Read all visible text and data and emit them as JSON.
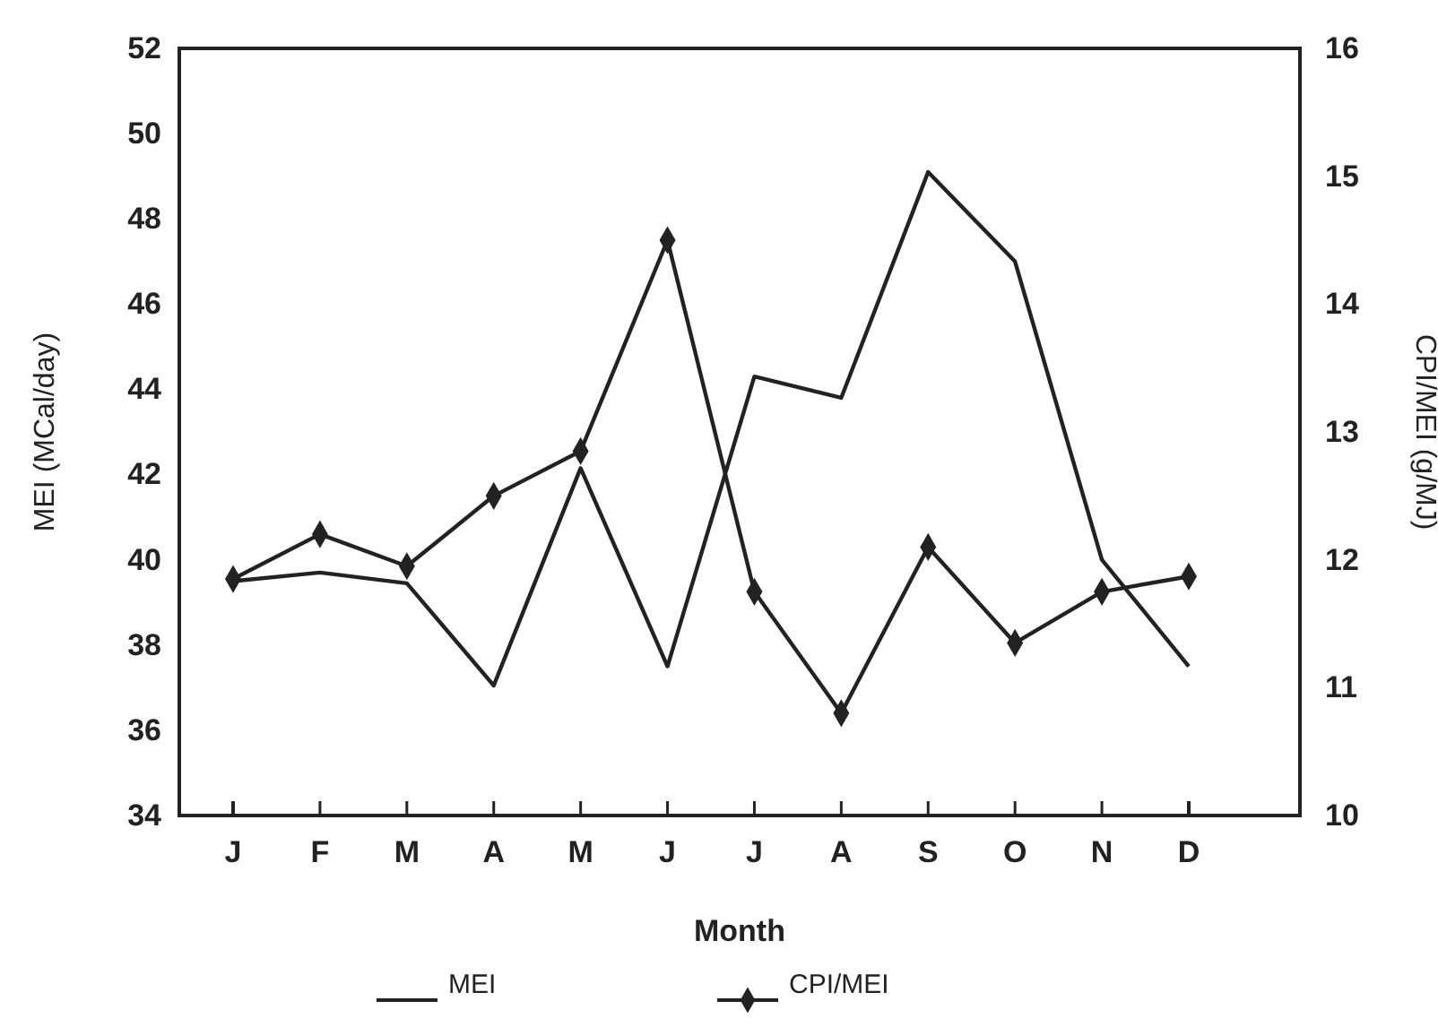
{
  "chart_data": {
    "type": "line",
    "xlabel": "Month",
    "ylabel": "MEI (MCal/day)",
    "y2label": "CPI/MEI (g/MJ)",
    "categories": [
      "J",
      "F",
      "M",
      "A",
      "M",
      "J",
      "J",
      "A",
      "S",
      "O",
      "N",
      "D"
    ],
    "ylim": [
      34,
      52
    ],
    "yticks": [
      34,
      36,
      38,
      40,
      42,
      44,
      46,
      48,
      50,
      52
    ],
    "y2lim": [
      10,
      16
    ],
    "y2ticks": [
      10,
      11,
      12,
      13,
      14,
      15,
      16
    ],
    "legend": "bottom",
    "grid": false,
    "series": [
      {
        "name": "MEI",
        "color": "#222222",
        "marker": "none",
        "values": [
          39.5,
          39.7,
          39.45,
          37.05,
          42.15,
          37.5,
          44.3,
          43.8,
          49.1,
          47.0,
          40.0,
          37.5
        ]
      },
      {
        "name": "CPI/MEI",
        "color": "#222222",
        "marker": "diamond",
        "axis": "y2",
        "values": [
          11.85,
          12.2,
          11.95,
          12.5,
          12.85,
          14.5,
          11.75,
          10.8,
          12.1,
          11.35,
          11.75,
          11.87
        ]
      }
    ]
  }
}
